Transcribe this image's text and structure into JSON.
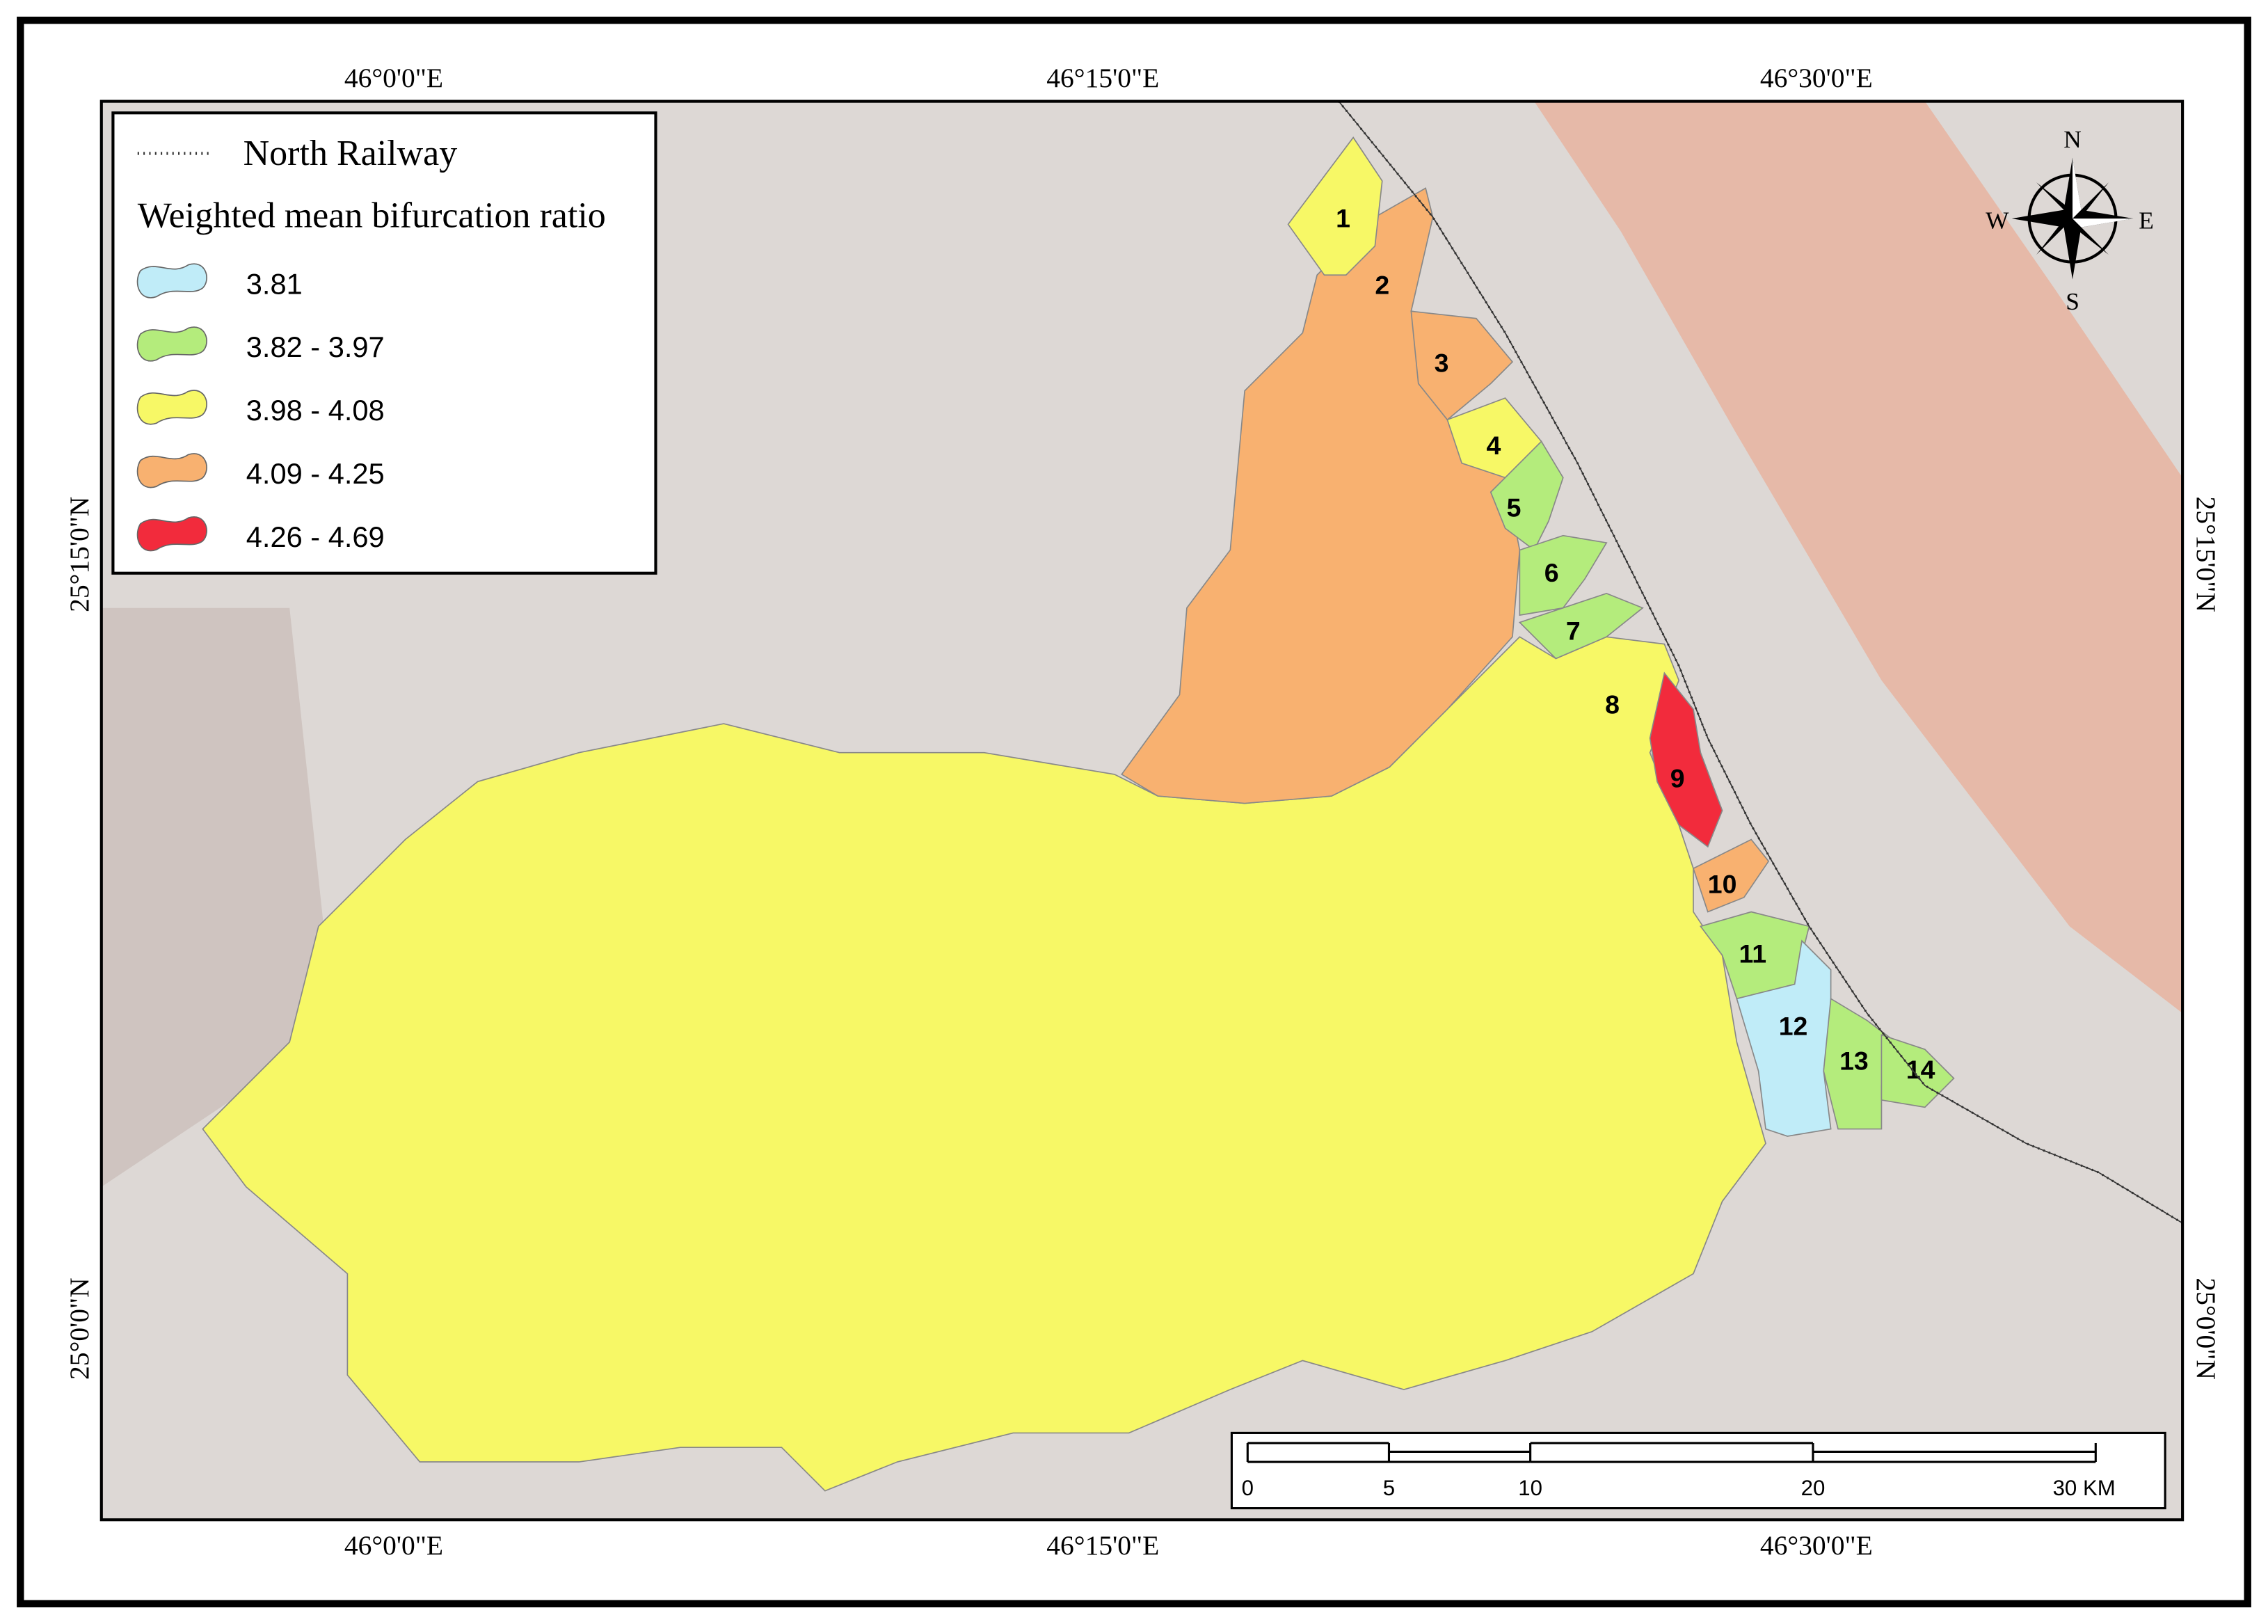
{
  "legend": {
    "railway": "North Railway",
    "title": "Weighted mean bifurcation ratio",
    "classes": [
      {
        "label": "3.81",
        "color": "#c0ecf8"
      },
      {
        "label": "3.82 - 3.97",
        "color": "#b4ec7c"
      },
      {
        "label": "3.98 - 4.08",
        "color": "#f7f866"
      },
      {
        "label": "4.09 - 4.25",
        "color": "#f8b170"
      },
      {
        "label": "4.26 - 4.69",
        "color": "#f22b3c"
      }
    ]
  },
  "top_labels": [
    "46°0'0\"E",
    "46°15'0\"E",
    "46°30'0\"E"
  ],
  "bottom_labels": [
    "46°0'0\"E",
    "46°15'0\"E",
    "46°30'0\"E"
  ],
  "left_labels": [
    "25°15'0\"N",
    "25°0'0\"N"
  ],
  "right_labels": [
    "25°15'0\"N",
    "25°0'0\"N"
  ],
  "basins": [
    {
      "label": "1",
      "color": "#f7f866"
    },
    {
      "label": "2",
      "color": "#f8b170"
    },
    {
      "label": "3",
      "color": "#f8b170"
    },
    {
      "label": "4",
      "color": "#f7f866"
    },
    {
      "label": "5",
      "color": "#b4ec7c"
    },
    {
      "label": "6",
      "color": "#b4ec7c"
    },
    {
      "label": "7",
      "color": "#b4ec7c"
    },
    {
      "label": "8",
      "color": "#f7f866"
    },
    {
      "label": "9",
      "color": "#f22b3c"
    },
    {
      "label": "10",
      "color": "#f8b170"
    },
    {
      "label": "11",
      "color": "#b4ec7c"
    },
    {
      "label": "12",
      "color": "#c0ecf8"
    },
    {
      "label": "13",
      "color": "#b4ec7c"
    },
    {
      "label": "14",
      "color": "#b4ec7c"
    }
  ],
  "scale_bar": {
    "ticks": [
      0,
      5,
      10,
      20,
      {
        "value": 30,
        "label": "30 KM"
      }
    ]
  },
  "compass": {
    "north": "N",
    "east": "E",
    "south": "S",
    "west": "W"
  }
}
